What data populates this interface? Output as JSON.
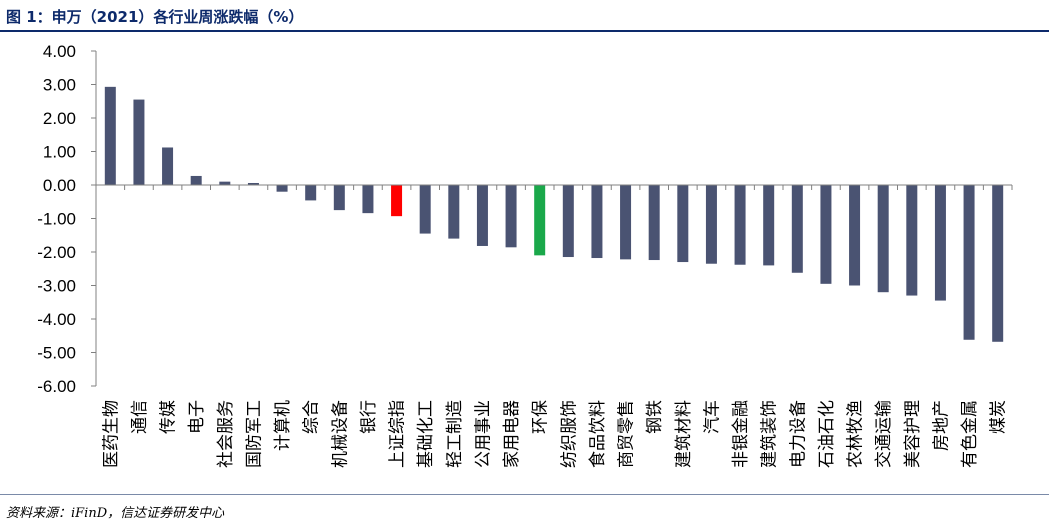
{
  "header": {
    "title": "图 1：申万（2021）各行业周涨跌幅（%）"
  },
  "footer": {
    "source": "资料来源：iFinD，信达证券研发中心"
  },
  "colors": {
    "bar_default": "#4a5372",
    "bar_highlight_red": "#ff0000",
    "bar_highlight_green": "#1aa84a",
    "axis": "#808080",
    "title": "#0d2a6b"
  },
  "chart_data": {
    "type": "bar",
    "title": "申万（2021）各行业周涨跌幅（%）",
    "xlabel": "",
    "ylabel": "",
    "ylim": [
      -6,
      4
    ],
    "yticks": [
      "4.00",
      "3.00",
      "2.00",
      "1.00",
      "0.00",
      "-1.00",
      "-2.00",
      "-3.00",
      "-4.00",
      "-5.00",
      "-6.00"
    ],
    "grid": false,
    "legend": "none",
    "categories": [
      "医药生物",
      "通信",
      "传媒",
      "电子",
      "社会服务",
      "国防军工",
      "计算机",
      "综合",
      "机械设备",
      "银行",
      "上证综指",
      "基础化工",
      "轻工制造",
      "公用事业",
      "家用电器",
      "环保",
      "纺织服饰",
      "食品饮料",
      "商贸零售",
      "钢铁",
      "建筑材料",
      "汽车",
      "非银金融",
      "建筑装饰",
      "电力设备",
      "石油石化",
      "农林牧渔",
      "交通运输",
      "美容护理",
      "房地产",
      "有色金属",
      "煤炭"
    ],
    "values": [
      2.93,
      2.55,
      1.12,
      0.27,
      0.1,
      0.06,
      -0.2,
      -0.46,
      -0.75,
      -0.84,
      -0.93,
      -1.45,
      -1.6,
      -1.82,
      -1.86,
      -2.1,
      -2.15,
      -2.18,
      -2.22,
      -2.24,
      -2.3,
      -2.35,
      -2.38,
      -2.4,
      -2.62,
      -2.95,
      -3.0,
      -3.2,
      -3.3,
      -3.45,
      -4.62,
      -4.68
    ],
    "highlights": {
      "上证综指": "red",
      "环保": "green"
    }
  }
}
